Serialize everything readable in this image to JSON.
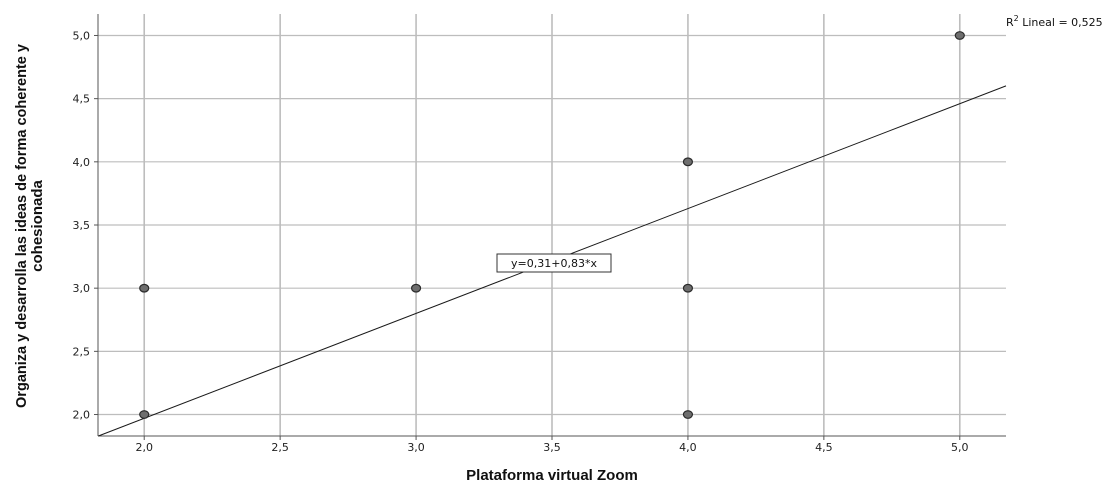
{
  "chart_data": {
    "type": "scatter",
    "xlabel": "Plataforma virtual Zoom",
    "ylabel_lines": [
      "Organiza y desarrolla las ideas de forma coherente y",
      "cohesionada"
    ],
    "xlim": [
      1.83,
      5.17
    ],
    "ylim": [
      1.83,
      5.17
    ],
    "xticks": [
      2.0,
      2.5,
      3.0,
      3.5,
      4.0,
      4.5,
      5.0
    ],
    "yticks": [
      2.0,
      2.5,
      3.0,
      3.5,
      4.0,
      4.5,
      5.0
    ],
    "xtick_labels": [
      "2,0",
      "2,5",
      "3,0",
      "3,5",
      "4,0",
      "4,5",
      "5,0"
    ],
    "ytick_labels": [
      "2,0",
      "2,5",
      "3,0",
      "3,5",
      "4,0",
      "4,5",
      "5,0"
    ],
    "grid": true,
    "points": [
      {
        "x": 2,
        "y": 3
      },
      {
        "x": 2,
        "y": 2
      },
      {
        "x": 3,
        "y": 3
      },
      {
        "x": 4,
        "y": 4
      },
      {
        "x": 4,
        "y": 3
      },
      {
        "x": 4,
        "y": 2
      },
      {
        "x": 5,
        "y": 5
      }
    ],
    "fit_line": {
      "intercept": 0.31,
      "slope": 0.83
    },
    "equation_label": "y=0,31+0,83*x",
    "r2_prefix": "R",
    "r2_sup": "2",
    "r2_suffix": " Lineal = 0,525",
    "colors": {
      "grid": "#bdbdbd",
      "axis": "#555555",
      "point_fill": "#6e6e6e",
      "point_stroke": "#2b2b2b",
      "line": "#1a1a1a"
    }
  }
}
